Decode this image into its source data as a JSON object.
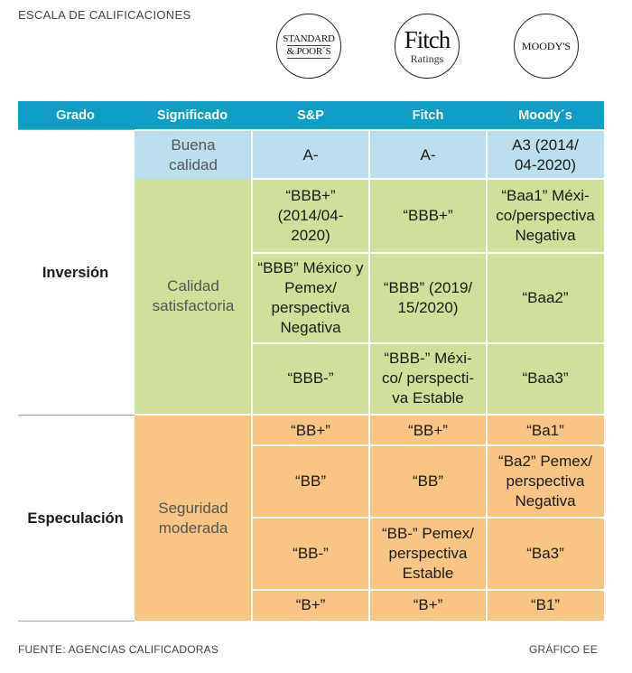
{
  "title": "ESCALA DE CALIFICACIONES",
  "logos": {
    "sp": {
      "line1": "STANDARD",
      "line2": "& POOR´S"
    },
    "fitch": {
      "main": "Fitch",
      "sub": "Ratings"
    },
    "moodys": {
      "main": "MOODY'S"
    }
  },
  "headers": {
    "grado": "Grado",
    "significado": "Significado",
    "sp": "S&P",
    "fitch": "Fitch",
    "moodys": "Moody´s"
  },
  "grades": {
    "inversion": "Inversión",
    "especulacion": "Especulación"
  },
  "meanings": {
    "buena": "Buena calidad",
    "satisfactoria": "Calidad satisfactoria",
    "moderada": "Seguridad moderada"
  },
  "rows": [
    {
      "sp": "A-",
      "fitch": "A-",
      "moodys": "A3 (2014/ 04-2020)"
    },
    {
      "sp": "“BBB+” (2014/04- 2020)",
      "fitch": "“BBB+”",
      "moodys": "“Baa1” Méxi- co/perspectiva Negativa"
    },
    {
      "sp": "“BBB” México y Pemex/ perspectiva Negativa",
      "fitch": "“BBB” (2019/ 15/2020)",
      "moodys": "“Baa2”"
    },
    {
      "sp": "“BBB-”",
      "fitch": "“BBB-” Méxi- co/ perspecti- va Estable",
      "moodys": "“Baa3”"
    },
    {
      "sp": "“BB+”",
      "fitch": "“BB+”",
      "moodys": "“Ba1”"
    },
    {
      "sp": "“BB”",
      "fitch": "“BB”",
      "moodys": "“Ba2” Pemex/ perspectiva Negativa"
    },
    {
      "sp": "“BB-”",
      "fitch": "“BB-” Pemex/ perspectiva Estable",
      "moodys": "“Ba3”"
    },
    {
      "sp": "“B+”",
      "fitch": "“B+”",
      "moodys": "“B1”"
    }
  ],
  "footer": {
    "source": "FUENTE: AGENCIAS CALIFICADORAS",
    "credit": "GRÁFICO EE"
  },
  "colors": {
    "header": "#0e9dc4",
    "buena": "#bcdfee",
    "satisfactoria": "#cfe09a",
    "moderada": "#f8c584"
  }
}
